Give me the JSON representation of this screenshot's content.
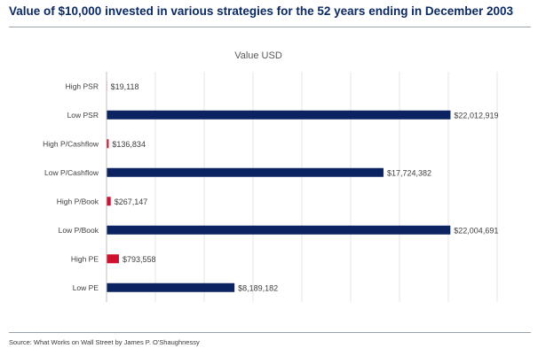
{
  "title": "Value of $10,000 invested in various strategies for the 52 years ending in December 2003",
  "source": "Source: What Works on Wall Street by James P. O'Shaughnessy",
  "colors": {
    "title": "#0b2a62",
    "low_bar": "#0b2461",
    "high_bar": "#d0102f",
    "grid": "#e4e4e4"
  },
  "chart_data": {
    "type": "bar",
    "orientation": "horizontal",
    "title": "Value USD",
    "categories": [
      "High PSR",
      "Low PSR",
      "High P/Cashflow",
      "Low P/Cashflow",
      "High P/Book",
      "Low P/Book",
      "High PE",
      "Low PE"
    ],
    "values": [
      19118,
      22012919,
      136834,
      17724382,
      267147,
      22004691,
      793558,
      8189182
    ],
    "value_labels": [
      "$19,118",
      "$22,012,919",
      "$136,834",
      "$17,724,382",
      "$267,147",
      "$22,004,691",
      "$793,558",
      "$8,189,182"
    ],
    "bar_colors": [
      "#d0102f",
      "#0b2461",
      "#d0102f",
      "#0b2461",
      "#d0102f",
      "#0b2461",
      "#d0102f",
      "#0b2461"
    ],
    "xlim": [
      0,
      25000000
    ],
    "grid": true,
    "legend": "none"
  }
}
